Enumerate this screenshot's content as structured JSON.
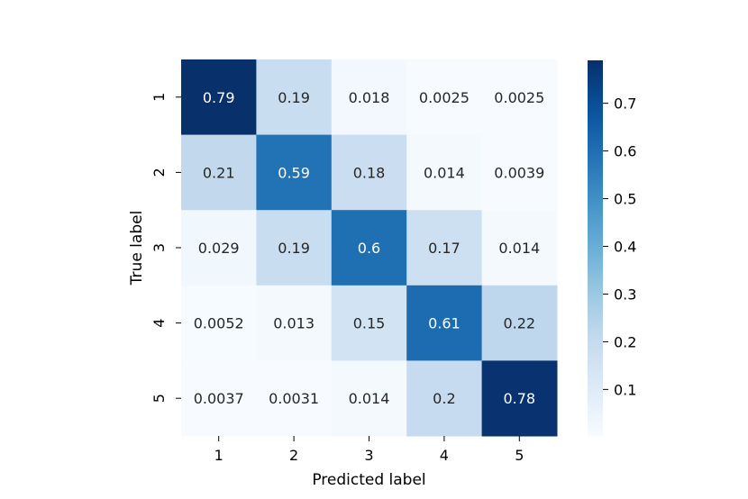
{
  "chart_data": {
    "type": "heatmap",
    "title": "",
    "xlabel": "Predicted label",
    "ylabel": "True label",
    "x_categories": [
      "1",
      "2",
      "3",
      "4",
      "5"
    ],
    "y_categories": [
      "1",
      "2",
      "3",
      "4",
      "5"
    ],
    "values": [
      [
        0.79,
        0.19,
        0.018,
        0.0025,
        0.0025
      ],
      [
        0.21,
        0.59,
        0.18,
        0.014,
        0.0039
      ],
      [
        0.029,
        0.19,
        0.6,
        0.17,
        0.014
      ],
      [
        0.0052,
        0.013,
        0.15,
        0.61,
        0.22
      ],
      [
        0.0037,
        0.0031,
        0.014,
        0.2,
        0.78
      ]
    ],
    "annotations": [
      [
        "0.79",
        "0.19",
        "0.018",
        "0.0025",
        "0.0025"
      ],
      [
        "0.21",
        "0.59",
        "0.18",
        "0.014",
        "0.0039"
      ],
      [
        "0.029",
        "0.19",
        "0.6",
        "0.17",
        "0.014"
      ],
      [
        "0.0052",
        "0.013",
        "0.15",
        "0.61",
        "0.22"
      ],
      [
        "0.0037",
        "0.0031",
        "0.014",
        "0.2",
        "0.78"
      ]
    ],
    "colormap": "Blues",
    "colorbar": {
      "range": [
        0.0025,
        0.79
      ],
      "ticks": [
        0.1,
        0.2,
        0.3,
        0.4,
        0.5,
        0.6,
        0.7
      ],
      "tick_labels": [
        "0.1",
        "0.2",
        "0.3",
        "0.4",
        "0.5",
        "0.6",
        "0.7"
      ]
    },
    "grid": false
  }
}
